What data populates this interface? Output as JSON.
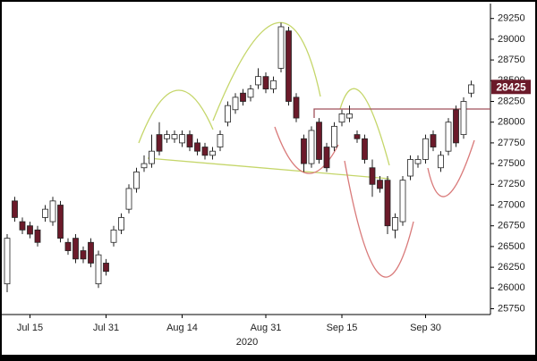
{
  "chart_data": {
    "type": "candlestick",
    "categories": [
      null,
      null,
      null,
      "Jul 15",
      null,
      null,
      null,
      null,
      null,
      null,
      null,
      null,
      null,
      "Jul 31",
      null,
      null,
      null,
      null,
      null,
      null,
      null,
      null,
      null,
      "Aug 14",
      null,
      null,
      null,
      null,
      null,
      null,
      null,
      null,
      null,
      null,
      "Aug 31",
      null,
      null,
      null,
      null,
      null,
      null,
      null,
      null,
      null,
      "Sep 15",
      null,
      null,
      null,
      null,
      null,
      null,
      null,
      null,
      null,
      null,
      "Sep 30",
      null,
      null,
      null,
      null,
      null,
      null
    ],
    "x_label": "2020",
    "open": [
      26050,
      27050,
      26800,
      26750,
      26700,
      26850,
      26800,
      27000,
      26550,
      26600,
      26450,
      26550,
      26050,
      26300,
      26550,
      26700,
      26950,
      27200,
      27450,
      27500,
      27850,
      27800,
      27800,
      27750,
      27850,
      27750,
      27700,
      27600,
      27700,
      28000,
      28150,
      28350,
      28300,
      28450,
      28550,
      28400,
      28650,
      29100,
      28300,
      27800,
      27500,
      28000,
      27700,
      27700,
      28000,
      28050,
      27850,
      27800,
      27450,
      27300,
      27300,
      26700,
      26800,
      27350,
      27500,
      27550,
      27850,
      27450,
      27650,
      28150,
      27850,
      28350
    ],
    "high": [
      26650,
      27100,
      26850,
      26800,
      26750,
      27000,
      27100,
      27050,
      26600,
      26650,
      26500,
      26600,
      26450,
      26350,
      26750,
      26900,
      27250,
      27450,
      27600,
      27850,
      28000,
      27900,
      27900,
      27900,
      27900,
      27800,
      27750,
      27700,
      27900,
      28250,
      28350,
      28400,
      28450,
      28650,
      28600,
      28550,
      29200,
      29150,
      28350,
      27850,
      27950,
      28050,
      27750,
      28000,
      28150,
      28200,
      27900,
      27850,
      27550,
      27350,
      27350,
      26900,
      27350,
      27600,
      27600,
      27850,
      27900,
      27650,
      28050,
      28200,
      28300,
      28500
    ],
    "low": [
      25950,
      26800,
      26650,
      26600,
      26500,
      26800,
      26750,
      26550,
      26400,
      26300,
      26300,
      26250,
      26000,
      26150,
      26500,
      26650,
      26900,
      27150,
      27400,
      27450,
      27600,
      27750,
      27750,
      27700,
      27650,
      27600,
      27550,
      27550,
      27650,
      27950,
      28100,
      28200,
      28250,
      28400,
      28350,
      28350,
      28600,
      28200,
      28000,
      27400,
      27450,
      27500,
      27400,
      27650,
      27950,
      28000,
      27750,
      27500,
      27100,
      27150,
      26650,
      26600,
      26750,
      27300,
      27450,
      27500,
      27650,
      27400,
      27600,
      27700,
      27800,
      28300
    ],
    "close": [
      26600,
      26850,
      26700,
      26650,
      26550,
      26950,
      27050,
      26600,
      26450,
      26350,
      26350,
      26300,
      26400,
      26200,
      26700,
      26850,
      27200,
      27400,
      27500,
      27650,
      27650,
      27850,
      27850,
      27850,
      27700,
      27650,
      27600,
      27650,
      27850,
      28200,
      28300,
      28250,
      28400,
      28550,
      28400,
      28500,
      29150,
      28250,
      28050,
      27500,
      27900,
      27550,
      27450,
      27950,
      28100,
      28100,
      27800,
      27550,
      27250,
      27200,
      26750,
      26850,
      27300,
      27550,
      27550,
      27800,
      27700,
      27600,
      28000,
      27750,
      28250,
      28450
    ],
    "up_color": "#ffffff",
    "down_color": "#6b1a2a",
    "last_price": 28425,
    "ylim": [
      25680,
      29430
    ],
    "yticks": [
      25750,
      26000,
      26250,
      26500,
      26750,
      27000,
      27250,
      27500,
      27750,
      28000,
      28250,
      28500,
      28750,
      29000,
      29250
    ]
  }
}
